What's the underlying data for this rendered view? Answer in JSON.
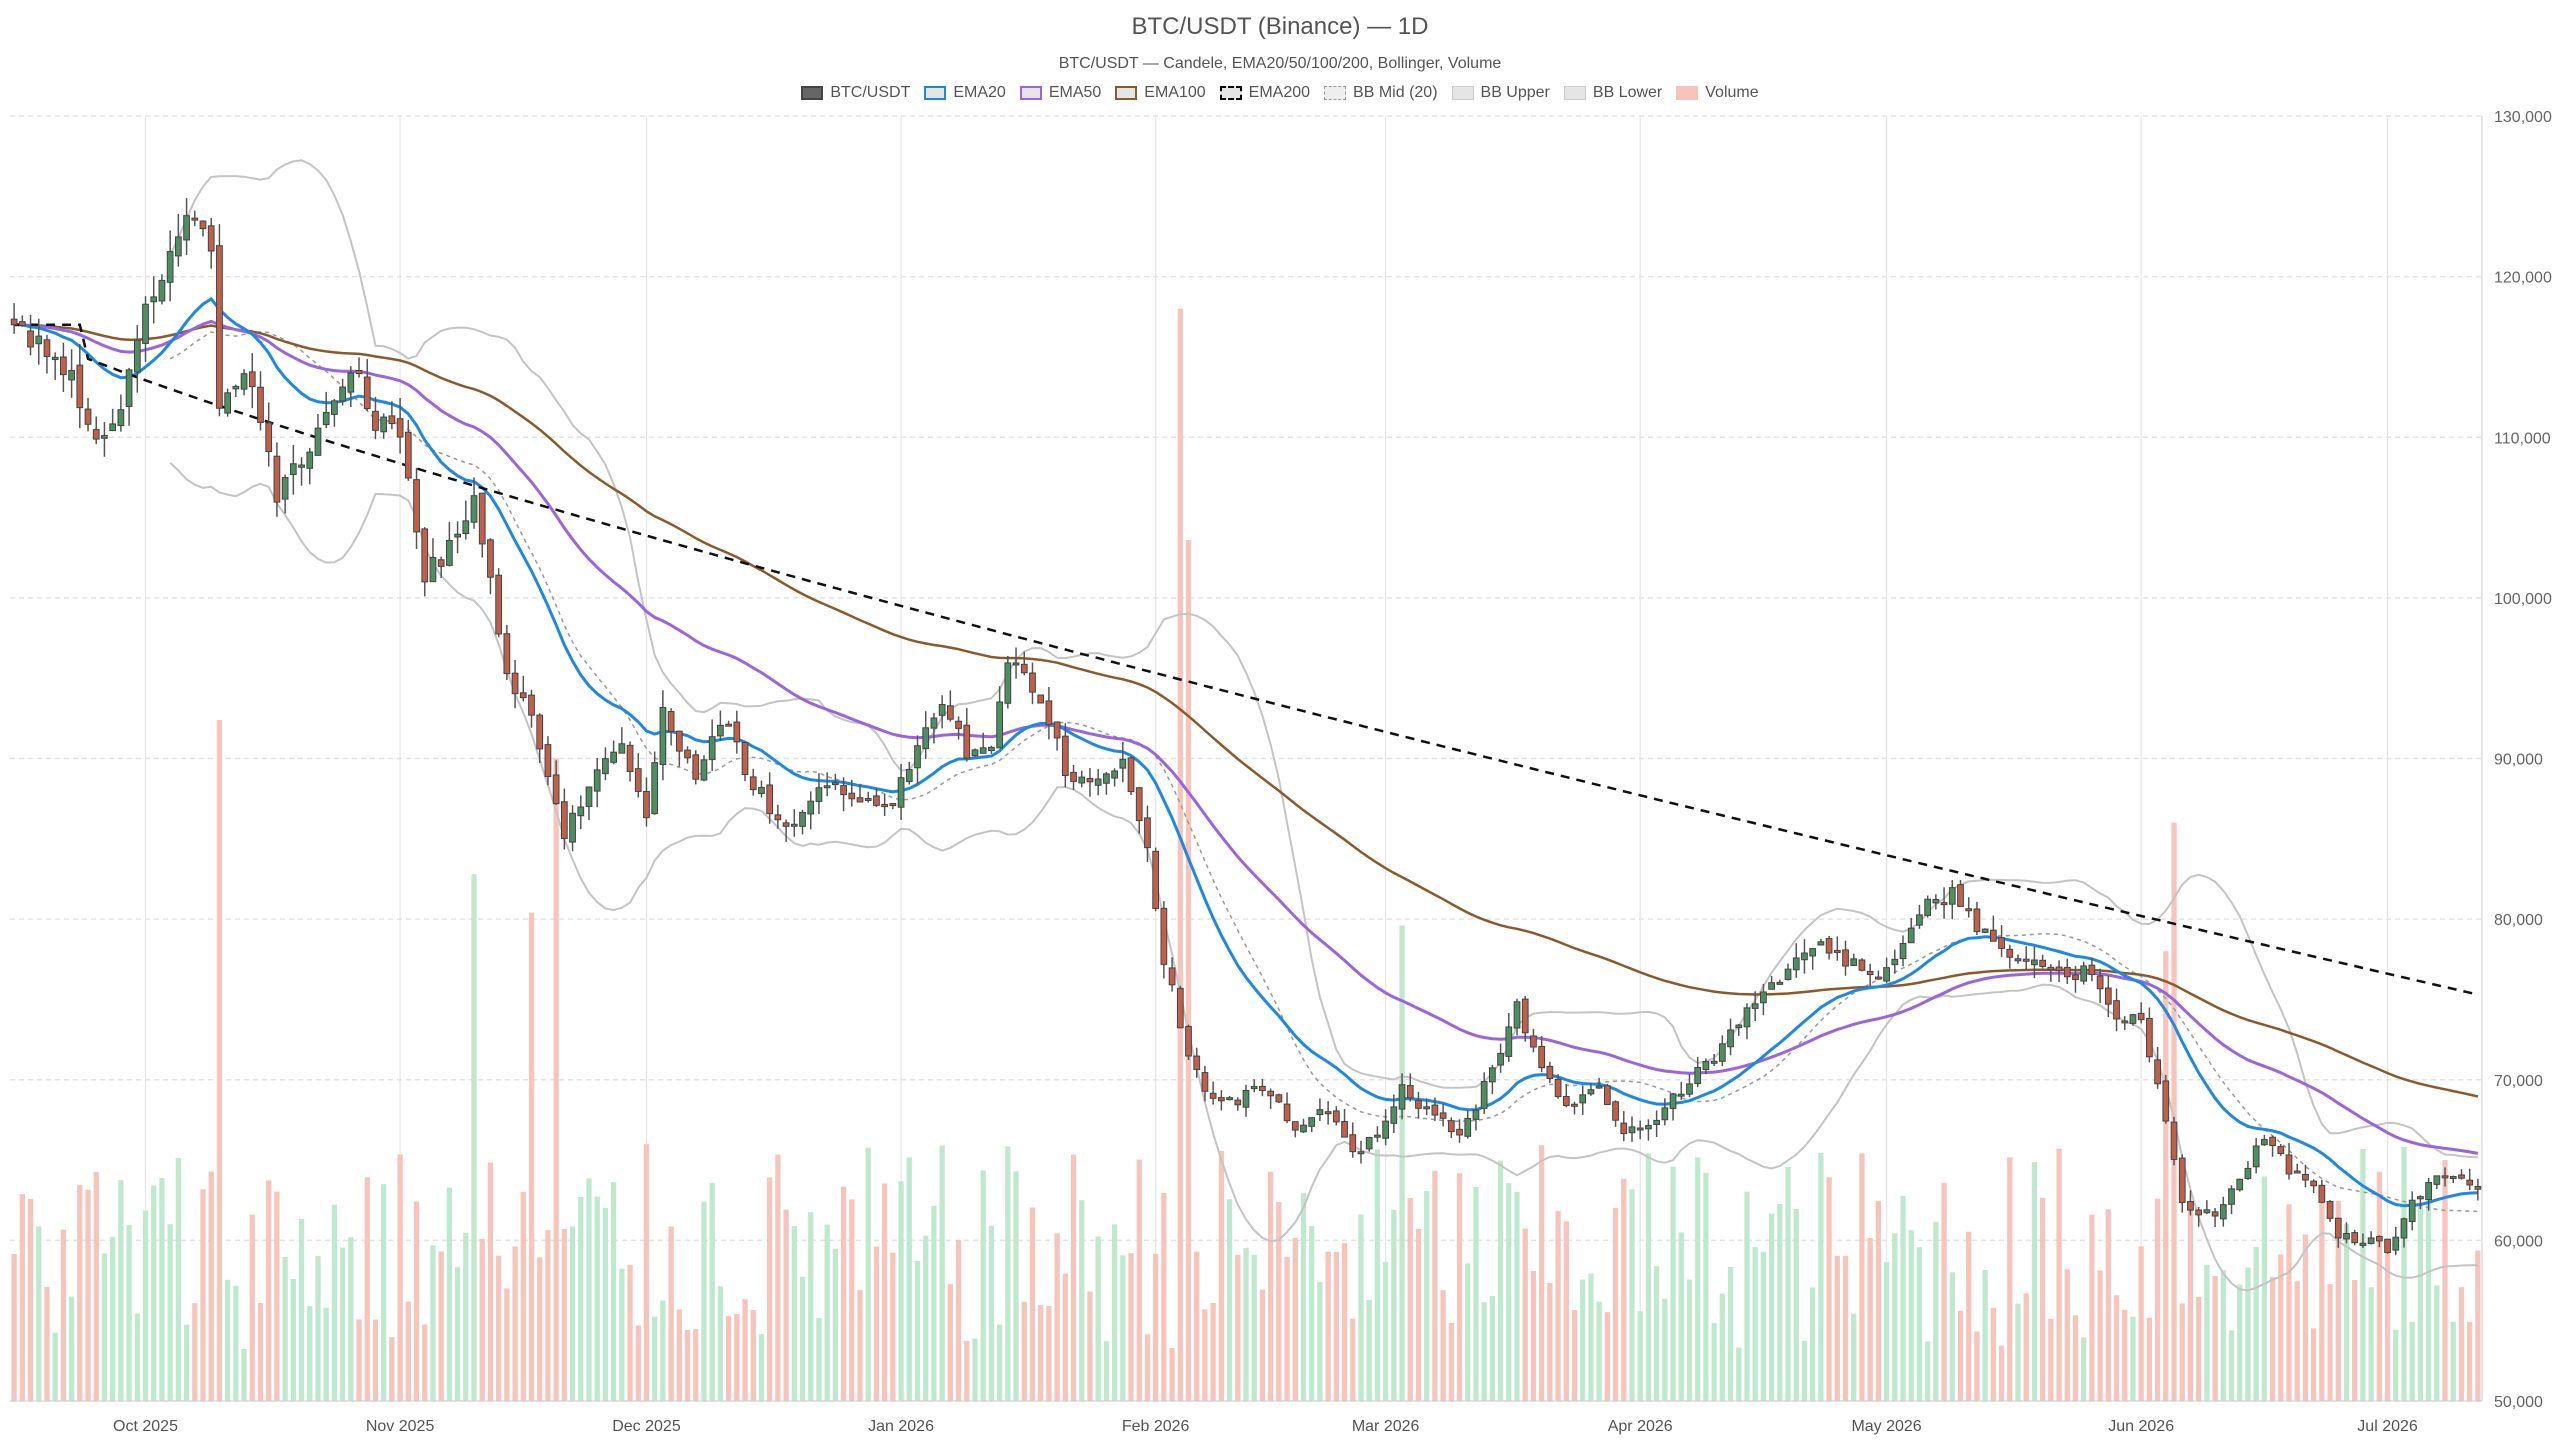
{
  "chart_data": {
    "type": "candlestick",
    "title": "BTC/USDT (Binance) — 1D",
    "subtitle": "BTC/USDT — Candele, EMA20/50/100/200, Bollinger, Volume",
    "legend": [
      {
        "name": "BTC/USDT",
        "swatch": "solid",
        "color": "#666666"
      },
      {
        "name": "EMA20",
        "swatch": "outline",
        "color": "#1e88e5"
      },
      {
        "name": "EMA50",
        "swatch": "outline",
        "color": "#9966e0"
      },
      {
        "name": "EMA100",
        "swatch": "outline",
        "color": "#8b5a2b"
      },
      {
        "name": "EMA200",
        "swatch": "dashed",
        "color": "#000000"
      },
      {
        "name": "BB Mid (20)",
        "swatch": "dotted",
        "color": "#999999"
      },
      {
        "name": "BB Upper",
        "swatch": "light",
        "color": "#bbbbbb"
      },
      {
        "name": "BB Lower",
        "swatch": "light",
        "color": "#bbbbbb"
      },
      {
        "name": "Volume",
        "swatch": "pink",
        "color": "#f4b6aa"
      }
    ],
    "y_axis": {
      "min": 50000,
      "max": 130000,
      "position": "right",
      "ticks": [
        {
          "v": 50000,
          "l": "50,000"
        },
        {
          "v": 60000,
          "l": "60,000"
        },
        {
          "v": 70000,
          "l": "70,000"
        },
        {
          "v": 80000,
          "l": "80,000"
        },
        {
          "v": 90000,
          "l": "90,000"
        },
        {
          "v": 100000,
          "l": "100,000"
        },
        {
          "v": 110000,
          "l": "110,000"
        },
        {
          "v": 120000,
          "l": "120,000"
        },
        {
          "v": 130000,
          "l": "130,000"
        }
      ]
    },
    "x_axis": {
      "start": "2025-09-15",
      "end": "2026-07-12",
      "ticks": [
        {
          "d": "2025-10-01",
          "l": "Oct 2025"
        },
        {
          "d": "2025-11-01",
          "l": "Nov 2025"
        },
        {
          "d": "2025-12-01",
          "l": "Dec 2025"
        },
        {
          "d": "2026-01-01",
          "l": "Jan 2026"
        },
        {
          "d": "2026-02-01",
          "l": "Feb 2026"
        },
        {
          "d": "2026-03-01",
          "l": "Mar 2026"
        },
        {
          "d": "2026-04-01",
          "l": "Apr 2026"
        },
        {
          "d": "2026-05-01",
          "l": "May 2026"
        },
        {
          "d": "2026-06-01",
          "l": "Jun 2026"
        },
        {
          "d": "2026-07-01",
          "l": "Jul 2026"
        }
      ]
    },
    "grid": true,
    "colors": {
      "up": "#4d8f60",
      "down": "#c0604a",
      "vol_up": "#bfe9cf",
      "vol_down": "#f6c4ba"
    },
    "price_anchors": [
      [
        "2025-09-15",
        116500
      ],
      [
        "2025-09-18",
        116200
      ],
      [
        "2025-09-22",
        113500
      ],
      [
        "2025-09-25",
        109500
      ],
      [
        "2025-09-28",
        111500
      ],
      [
        "2025-10-01",
        118000
      ],
      [
        "2025-10-04",
        121500
      ],
      [
        "2025-10-06",
        124500
      ],
      [
        "2025-10-09",
        121500
      ],
      [
        "2025-10-10",
        111500
      ],
      [
        "2025-10-13",
        114500
      ],
      [
        "2025-10-17",
        106500
      ],
      [
        "2025-10-21",
        109500
      ],
      [
        "2025-10-26",
        114500
      ],
      [
        "2025-10-29",
        111000
      ],
      [
        "2025-11-01",
        110000
      ],
      [
        "2025-11-04",
        101500
      ],
      [
        "2025-11-07",
        103000
      ],
      [
        "2025-11-10",
        106000
      ],
      [
        "2025-11-14",
        95500
      ],
      [
        "2025-11-17",
        92500
      ],
      [
        "2025-11-21",
        85000
      ],
      [
        "2025-11-24",
        88500
      ],
      [
        "2025-11-28",
        91000
      ],
      [
        "2025-12-01",
        86500
      ],
      [
        "2025-12-03",
        93000
      ],
      [
        "2025-12-07",
        89000
      ],
      [
        "2025-12-10",
        92500
      ],
      [
        "2025-12-14",
        88500
      ],
      [
        "2025-12-18",
        85500
      ],
      [
        "2025-12-22",
        88500
      ],
      [
        "2025-12-26",
        87500
      ],
      [
        "2025-12-31",
        87500
      ],
      [
        "2026-01-03",
        90500
      ],
      [
        "2026-01-06",
        93500
      ],
      [
        "2026-01-09",
        90500
      ],
      [
        "2026-01-12",
        91000
      ],
      [
        "2026-01-14",
        96500
      ],
      [
        "2026-01-16",
        95500
      ],
      [
        "2026-01-19",
        92500
      ],
      [
        "2026-01-21",
        89000
      ],
      [
        "2026-01-25",
        88500
      ],
      [
        "2026-01-28",
        89500
      ],
      [
        "2026-01-31",
        84000
      ],
      [
        "2026-02-02",
        77500
      ],
      [
        "2026-02-05",
        71500
      ],
      [
        "2026-02-07",
        69500
      ],
      [
        "2026-02-10",
        68500
      ],
      [
        "2026-02-14",
        69500
      ],
      [
        "2026-02-18",
        67000
      ],
      [
        "2026-02-22",
        68000
      ],
      [
        "2026-02-25",
        65500
      ],
      [
        "2026-02-28",
        66500
      ],
      [
        "2026-03-03",
        69500
      ],
      [
        "2026-03-06",
        68000
      ],
      [
        "2026-03-10",
        66500
      ],
      [
        "2026-03-14",
        70500
      ],
      [
        "2026-03-17",
        74500
      ],
      [
        "2026-03-20",
        70500
      ],
      [
        "2026-03-23",
        68500
      ],
      [
        "2026-03-27",
        69500
      ],
      [
        "2026-03-30",
        66500
      ],
      [
        "2026-04-02",
        67000
      ],
      [
        "2026-04-06",
        69500
      ],
      [
        "2026-04-10",
        71500
      ],
      [
        "2026-04-14",
        74500
      ],
      [
        "2026-04-18",
        76500
      ],
      [
        "2026-04-22",
        78500
      ],
      [
        "2026-04-26",
        77500
      ],
      [
        "2026-04-30",
        76500
      ],
      [
        "2026-05-03",
        78500
      ],
      [
        "2026-05-06",
        81000
      ],
      [
        "2026-05-09",
        81500
      ],
      [
        "2026-05-12",
        79500
      ],
      [
        "2026-05-16",
        78000
      ],
      [
        "2026-05-19",
        77000
      ],
      [
        "2026-05-23",
        76500
      ],
      [
        "2026-05-26",
        77000
      ],
      [
        "2026-05-29",
        74000
      ],
      [
        "2026-06-01",
        73500
      ],
      [
        "2026-06-03",
        70000
      ],
      [
        "2026-06-06",
        62000
      ],
      [
        "2026-06-10",
        61500
      ],
      [
        "2026-06-13",
        64000
      ],
      [
        "2026-06-16",
        66500
      ],
      [
        "2026-06-19",
        64500
      ],
      [
        "2026-06-22",
        63500
      ],
      [
        "2026-06-25",
        60500
      ],
      [
        "2026-06-28",
        60000
      ],
      [
        "2026-07-01",
        59500
      ],
      [
        "2026-07-04",
        62500
      ],
      [
        "2026-07-07",
        64000
      ],
      [
        "2026-07-10",
        63500
      ],
      [
        "2026-07-12",
        63000
      ]
    ],
    "volume_spikes": [
      {
        "d": "2025-10-10",
        "v": 0.53
      },
      {
        "d": "2025-11-20",
        "v": 0.5
      },
      {
        "d": "2025-11-17",
        "v": 0.38
      },
      {
        "d": "2025-11-10",
        "v": 0.41
      },
      {
        "d": "2026-02-04",
        "v": 0.85
      },
      {
        "d": "2026-02-05",
        "v": 0.67
      },
      {
        "d": "2026-06-05",
        "v": 0.45
      },
      {
        "d": "2026-06-04",
        "v": 0.35
      },
      {
        "d": "2026-03-03",
        "v": 0.37
      }
    ],
    "ema_final": {
      "EMA20": 63000,
      "EMA50": 65200,
      "EMA100": 68600,
      "EMA200": 75300
    }
  }
}
